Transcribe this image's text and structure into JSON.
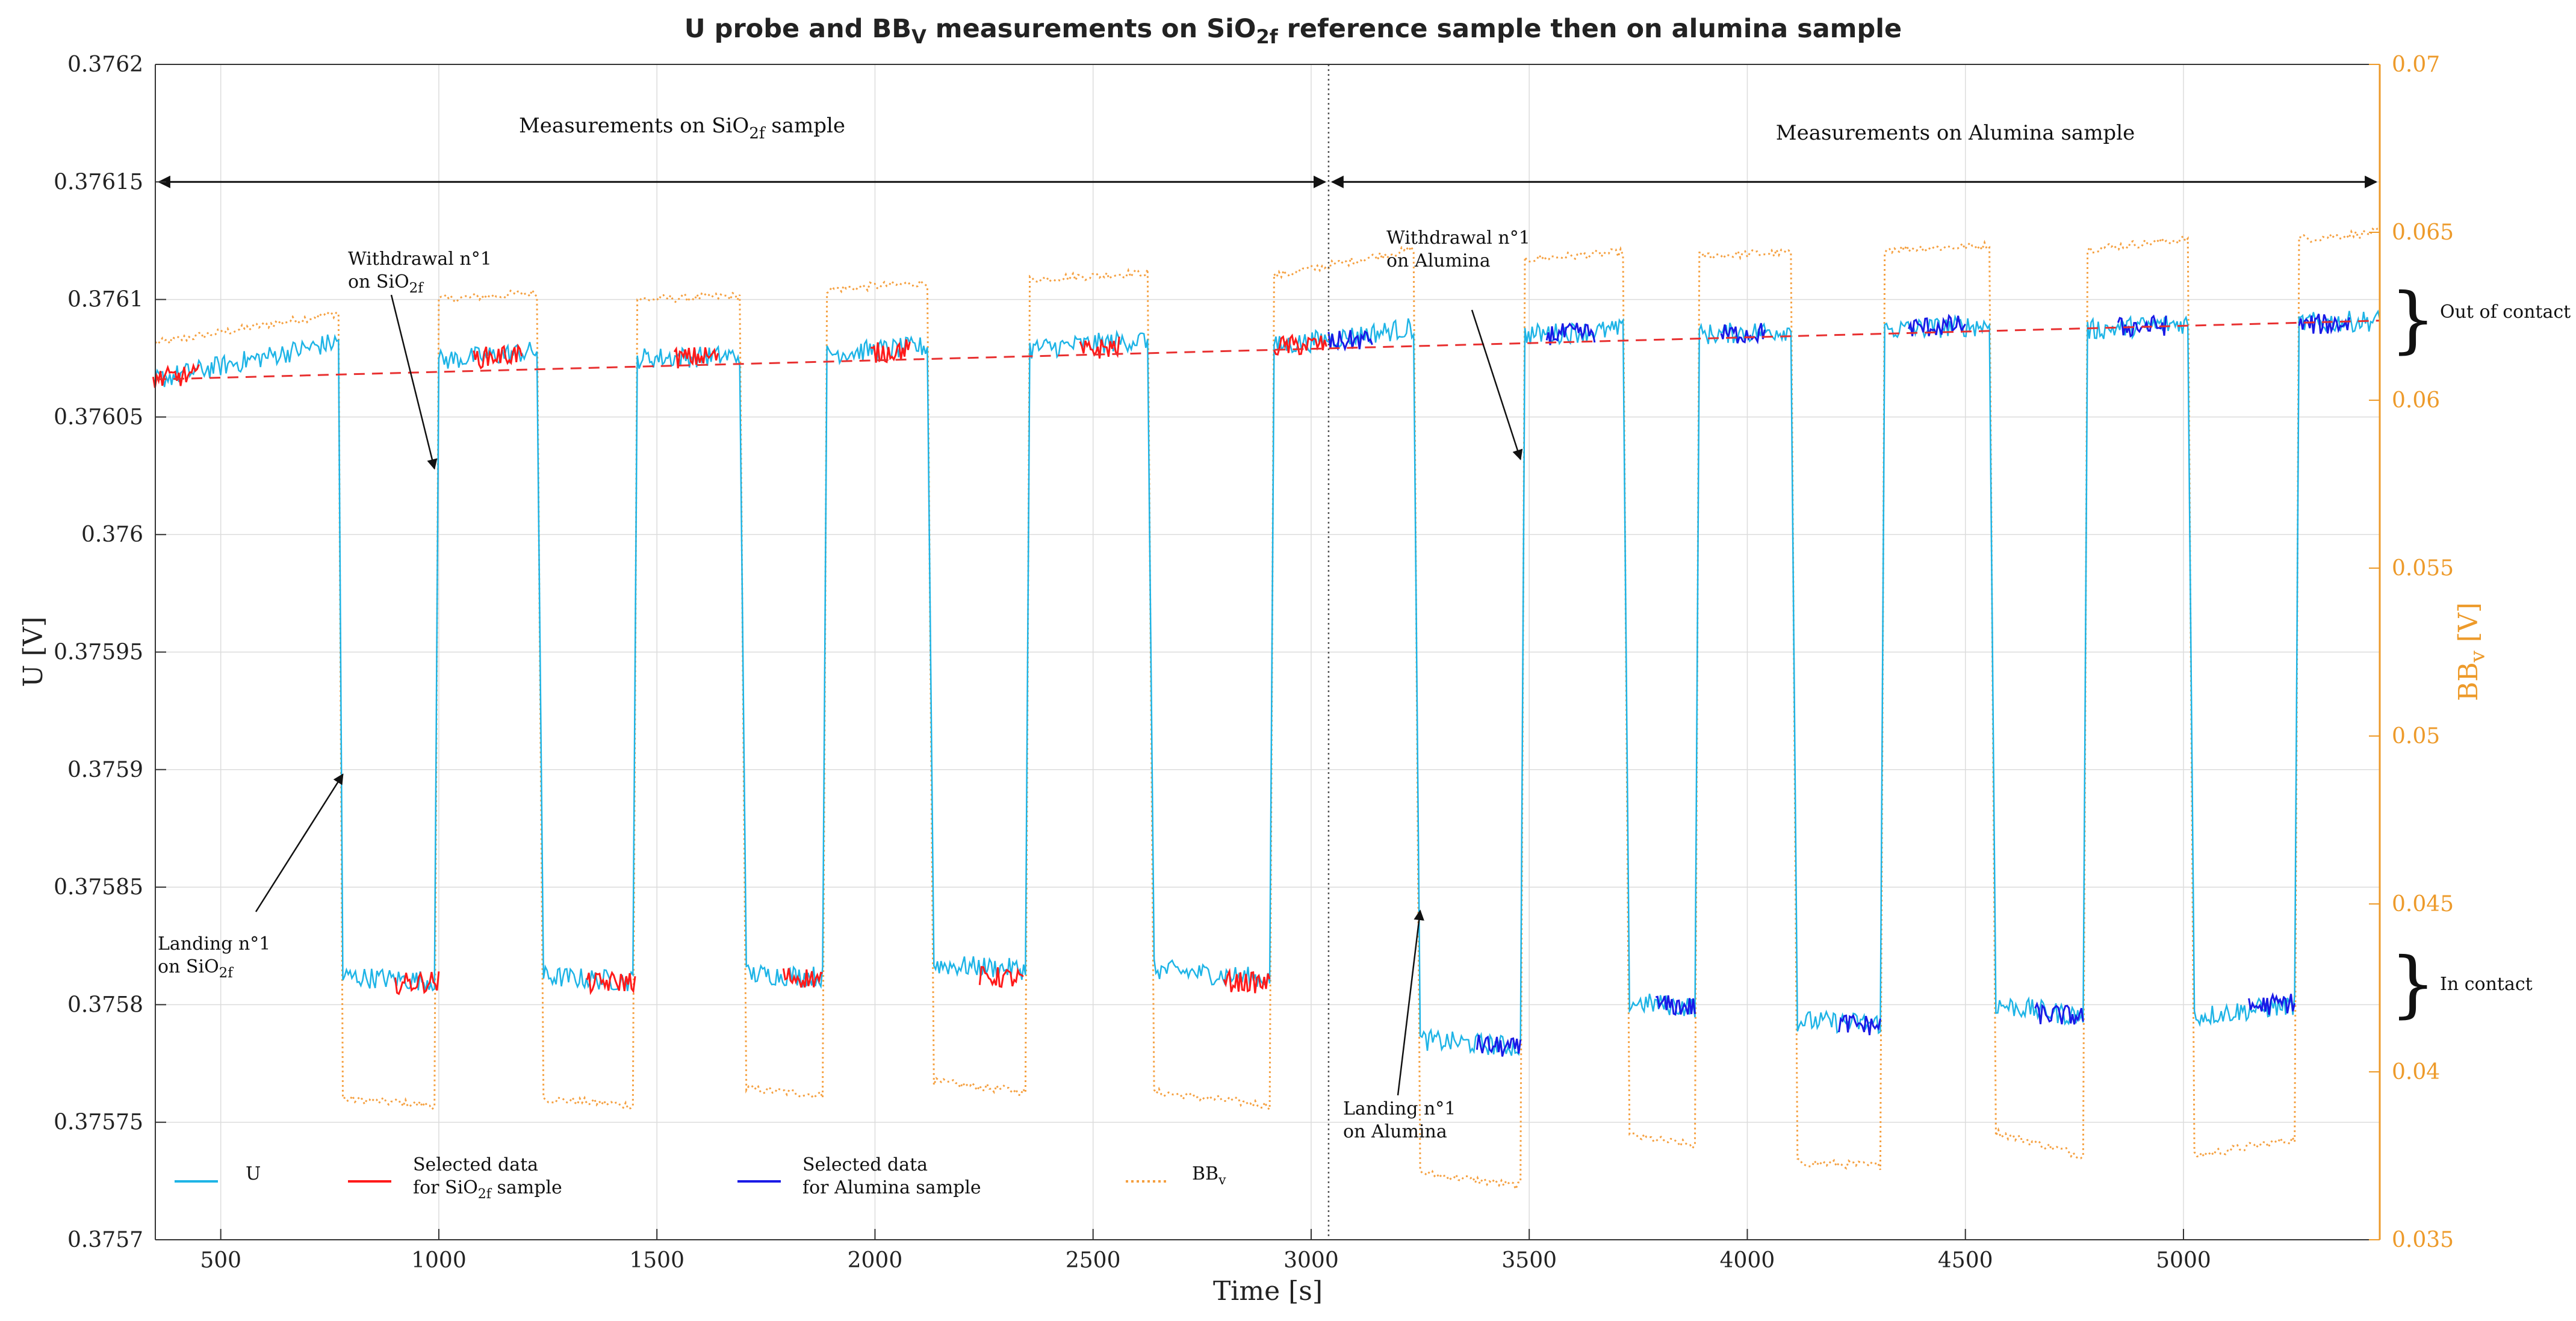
{
  "chart_data": {
    "type": "line",
    "title": "U probe and BB_V measurements on SiO_2f reference sample then on alumina sample",
    "title_parts": {
      "a": "U probe and BB",
      "sub_a": "V",
      "b": " measurements on SiO",
      "sub_b": "2f",
      "c": " reference sample then on alumina sample"
    },
    "xlabel": "Time [s]",
    "ylabel_left": "U [V]",
    "ylabel_right": "BB_v [V]",
    "ylabel_right_parts": {
      "main": "BB",
      "sub": "v",
      "unit": " [V]"
    },
    "xlim": [
      350,
      5450
    ],
    "ylim_left": [
      0.3757,
      0.3762
    ],
    "ylim_right": [
      0.035,
      0.07
    ],
    "x_ticks": [
      500,
      1000,
      1500,
      2000,
      2500,
      3000,
      3500,
      4000,
      4500,
      5000
    ],
    "x_tick_labels": [
      "500",
      "1000",
      "1500",
      "2000",
      "2500",
      "3000",
      "3500",
      "4000",
      "4500",
      "5000"
    ],
    "y_left_ticks": [
      0.3757,
      0.37575,
      0.3758,
      0.37585,
      0.3759,
      0.37595,
      0.376,
      0.37605,
      0.3761,
      0.37615,
      0.3762
    ],
    "y_left_tick_labels": [
      "0.3757",
      "0.37575",
      "0.3758",
      "0.37585",
      "0.3759",
      "0.37595",
      "0.376",
      "0.37605",
      "0.3761",
      "0.37615",
      "0.3762"
    ],
    "y_right_ticks": [
      0.035,
      0.04,
      0.045,
      0.05,
      0.055,
      0.06,
      0.065,
      0.07
    ],
    "y_right_tick_labels": [
      "0.035",
      "0.04",
      "0.045",
      "0.05",
      "0.055",
      "0.06",
      "0.065",
      "0.07"
    ],
    "grid": true,
    "colors": {
      "U": "#1EB4E6",
      "SiO2f": "#FF1A1A",
      "Alumina": "#1A1AE6",
      "BB": "#F5A040",
      "trend": "#E83030"
    },
    "series": [
      {
        "name": "U",
        "style": "solid",
        "axis": "left",
        "color": "#1EB4E6",
        "segments": [
          {
            "state": "out",
            "x": [
              350,
              770
            ],
            "y": [
              0.376066,
              0.376082
            ]
          },
          {
            "state": "in",
            "x": [
              780,
              990
            ],
            "y": [
              0.375812,
              0.37581
            ]
          },
          {
            "state": "out",
            "x": [
              1000,
              1225
            ],
            "y": [
              0.376074,
              0.376078
            ]
          },
          {
            "state": "in",
            "x": [
              1240,
              1445
            ],
            "y": [
              0.375812,
              0.37581
            ]
          },
          {
            "state": "out",
            "x": [
              1455,
              1690
            ],
            "y": [
              0.376075,
              0.376076
            ]
          },
          {
            "state": "in",
            "x": [
              1705,
              1880
            ],
            "y": [
              0.375813,
              0.375812
            ]
          },
          {
            "state": "out",
            "x": [
              1890,
              2120
            ],
            "y": [
              0.376077,
              0.37608
            ]
          },
          {
            "state": "in",
            "x": [
              2135,
              2345
            ],
            "y": [
              0.375817,
              0.375815
            ]
          },
          {
            "state": "out",
            "x": [
              2355,
              2625
            ],
            "y": [
              0.376079,
              0.376083
            ]
          },
          {
            "state": "in",
            "x": [
              2640,
              2905
            ],
            "y": [
              0.375815,
              0.375811
            ]
          },
          {
            "state": "out",
            "x": [
              2915,
              3235
            ],
            "y": [
              0.37608,
              0.376088
            ]
          },
          {
            "state": "in",
            "x": [
              3250,
              3480
            ],
            "y": [
              0.375785,
              0.375782
            ]
          },
          {
            "state": "out",
            "x": [
              3490,
              3715
            ],
            "y": [
              0.376085,
              0.376087
            ]
          },
          {
            "state": "in",
            "x": [
              3730,
              3880
            ],
            "y": [
              0.375801,
              0.375799
            ]
          },
          {
            "state": "out",
            "x": [
              3890,
              4100
            ],
            "y": [
              0.376085,
              0.376087
            ]
          },
          {
            "state": "in",
            "x": [
              4115,
              4305
            ],
            "y": [
              0.375793,
              0.375792
            ]
          },
          {
            "state": "out",
            "x": [
              4315,
              4555
            ],
            "y": [
              0.376087,
              0.376089
            ]
          },
          {
            "state": "in",
            "x": [
              4570,
              4770
            ],
            "y": [
              0.3758,
              0.375795
            ]
          },
          {
            "state": "out",
            "x": [
              4780,
              5010
            ],
            "y": [
              0.376087,
              0.37609
            ]
          },
          {
            "state": "in",
            "x": [
              5025,
              5255
            ],
            "y": [
              0.375795,
              0.3758
            ]
          },
          {
            "state": "out",
            "x": [
              5265,
              5450
            ],
            "y": [
              0.37609,
              0.376091
            ]
          }
        ]
      },
      {
        "name": "Selected data for SiO2f sample",
        "style": "solid",
        "axis": "left",
        "color": "#FF1A1A",
        "segments": [
          {
            "x": [
              345,
              450
            ],
            "y": [
              0.376066,
              0.376068
            ]
          },
          {
            "x": [
              900,
              1000
            ],
            "y": [
              0.375809,
              0.37581
            ]
          },
          {
            "x": [
              1080,
              1190
            ],
            "y": [
              0.376075,
              0.376077
            ]
          },
          {
            "x": [
              1340,
              1450
            ],
            "y": [
              0.375809,
              0.37581
            ]
          },
          {
            "x": [
              1540,
              1640
            ],
            "y": [
              0.376075,
              0.376076
            ]
          },
          {
            "x": [
              1790,
              1880
            ],
            "y": [
              0.375812,
              0.375811
            ]
          },
          {
            "x": [
              1990,
              2080
            ],
            "y": [
              0.376077,
              0.376079
            ]
          },
          {
            "x": [
              2240,
              2340
            ],
            "y": [
              0.375812,
              0.375811
            ]
          },
          {
            "x": [
              2470,
              2560
            ],
            "y": [
              0.376078,
              0.37608
            ]
          },
          {
            "x": [
              2800,
              2905
            ],
            "y": [
              0.37581,
              0.375809
            ]
          },
          {
            "x": [
              2915,
              3035
            ],
            "y": [
              0.37608,
              0.376081
            ]
          }
        ]
      },
      {
        "name": "Selected data for Alumina sample",
        "style": "solid",
        "axis": "left",
        "color": "#1A1AE6",
        "segments": [
          {
            "x": [
              3040,
              3140
            ],
            "y": [
              0.376082,
              0.376083
            ]
          },
          {
            "x": [
              3380,
              3480
            ],
            "y": [
              0.375783,
              0.375781
            ]
          },
          {
            "x": [
              3540,
              3650
            ],
            "y": [
              0.376085,
              0.376086
            ]
          },
          {
            "x": [
              3790,
              3880
            ],
            "y": [
              0.3758,
              0.375799
            ]
          },
          {
            "x": [
              3940,
              4040
            ],
            "y": [
              0.376085,
              0.376086
            ]
          },
          {
            "x": [
              4210,
              4305
            ],
            "y": [
              0.375792,
              0.375791
            ]
          },
          {
            "x": [
              4370,
              4500
            ],
            "y": [
              0.376088,
              0.376089
            ]
          },
          {
            "x": [
              4660,
              4770
            ],
            "y": [
              0.375796,
              0.375795
            ]
          },
          {
            "x": [
              4850,
              4960
            ],
            "y": [
              0.376088,
              0.376089
            ]
          },
          {
            "x": [
              5150,
              5255
            ],
            "y": [
              0.375799,
              0.375801
            ]
          },
          {
            "x": [
              5265,
              5380
            ],
            "y": [
              0.376089,
              0.37609
            ]
          }
        ]
      },
      {
        "name": "BB_v",
        "style": "dotted",
        "axis": "right",
        "color": "#F5A040",
        "segments": [
          {
            "state": "out",
            "x": [
              350,
              770
            ],
            "y": [
              0.0617,
              0.0626
            ]
          },
          {
            "state": "in",
            "x": [
              780,
              990
            ],
            "y": [
              0.0392,
              0.039
            ]
          },
          {
            "state": "out",
            "x": [
              1000,
              1225
            ],
            "y": [
              0.063,
              0.0632
            ]
          },
          {
            "state": "in",
            "x": [
              1240,
              1445
            ],
            "y": [
              0.0392,
              0.039
            ]
          },
          {
            "state": "out",
            "x": [
              1455,
              1690
            ],
            "y": [
              0.063,
              0.0631
            ]
          },
          {
            "state": "in",
            "x": [
              1705,
              1880
            ],
            "y": [
              0.0395,
              0.0393
            ]
          },
          {
            "state": "out",
            "x": [
              1890,
              2120
            ],
            "y": [
              0.0633,
              0.0635
            ]
          },
          {
            "state": "in",
            "x": [
              2135,
              2345
            ],
            "y": [
              0.0397,
              0.0394
            ]
          },
          {
            "state": "out",
            "x": [
              2355,
              2625
            ],
            "y": [
              0.0636,
              0.0638
            ]
          },
          {
            "state": "in",
            "x": [
              2640,
              2905
            ],
            "y": [
              0.0394,
              0.039
            ]
          },
          {
            "state": "out",
            "x": [
              2915,
              3235
            ],
            "y": [
              0.0637,
              0.0645
            ]
          },
          {
            "state": "in",
            "x": [
              3250,
              3480
            ],
            "y": [
              0.037,
              0.0366
            ]
          },
          {
            "state": "out",
            "x": [
              3490,
              3715
            ],
            "y": [
              0.0642,
              0.0644
            ]
          },
          {
            "state": "in",
            "x": [
              3730,
              3880
            ],
            "y": [
              0.0381,
              0.0378
            ]
          },
          {
            "state": "out",
            "x": [
              3890,
              4100
            ],
            "y": [
              0.0643,
              0.0644
            ]
          },
          {
            "state": "in",
            "x": [
              4115,
              4305
            ],
            "y": [
              0.0373,
              0.0372
            ]
          },
          {
            "state": "out",
            "x": [
              4315,
              4555
            ],
            "y": [
              0.0645,
              0.0646
            ]
          },
          {
            "state": "in",
            "x": [
              4570,
              4770
            ],
            "y": [
              0.0382,
              0.0375
            ]
          },
          {
            "state": "out",
            "x": [
              4780,
              5010
            ],
            "y": [
              0.0645,
              0.0648
            ]
          },
          {
            "state": "in",
            "x": [
              5025,
              5255
            ],
            "y": [
              0.0375,
              0.038
            ]
          },
          {
            "state": "out",
            "x": [
              5265,
              5450
            ],
            "y": [
              0.0648,
              0.065
            ]
          }
        ]
      },
      {
        "name": "Trend",
        "style": "dashed",
        "axis": "left",
        "color": "#E83030",
        "x": [
          350,
          5450
        ],
        "y": [
          0.376066,
          0.376091
        ]
      }
    ],
    "legend": {
      "placement": "bottom-left",
      "entries": [
        {
          "line1": "U",
          "line2": "",
          "color": "#1EB4E6",
          "style": "solid"
        },
        {
          "line1": "Selected data",
          "line2_a": "for SiO",
          "line2_sub": "2f",
          "line2_b": " sample",
          "color": "#FF1A1A",
          "style": "solid"
        },
        {
          "line1": "Selected data",
          "line2": "for Alumina sample",
          "color": "#1A1AE6",
          "style": "solid"
        },
        {
          "line1_main": "BB",
          "line1_sub": "v",
          "color": "#F5A040",
          "style": "dotted"
        }
      ]
    },
    "annotations": {
      "divider_x": 3040,
      "region_arrow_y": 0.37615,
      "region_sio2": {
        "prefix": "Measurements on SiO",
        "sub": "2f",
        "suffix": " sample"
      },
      "region_alumina": "Measurements on Alumina sample",
      "withdrawal_sio2": {
        "line1": "Withdrawal n°1",
        "line2_a": "on SiO",
        "line2_sub": "2f",
        "tip": [
          990,
          0.376028
        ]
      },
      "landing_sio2": {
        "line1": "Landing n°1",
        "line2_a": "on SiO",
        "line2_sub": "2f",
        "tip": [
          780,
          0.375898
        ]
      },
      "withdrawal_alumina": {
        "line1": "Withdrawal n°1",
        "line2": "on Alumina",
        "tip": [
          3480,
          0.376032
        ]
      },
      "landing_alumina": {
        "line1": "Landing n°1",
        "line2": "on Alumina",
        "tip": [
          3250,
          0.37584
        ]
      },
      "out_of_contact": "Out of contact",
      "in_contact": "In contact"
    }
  }
}
